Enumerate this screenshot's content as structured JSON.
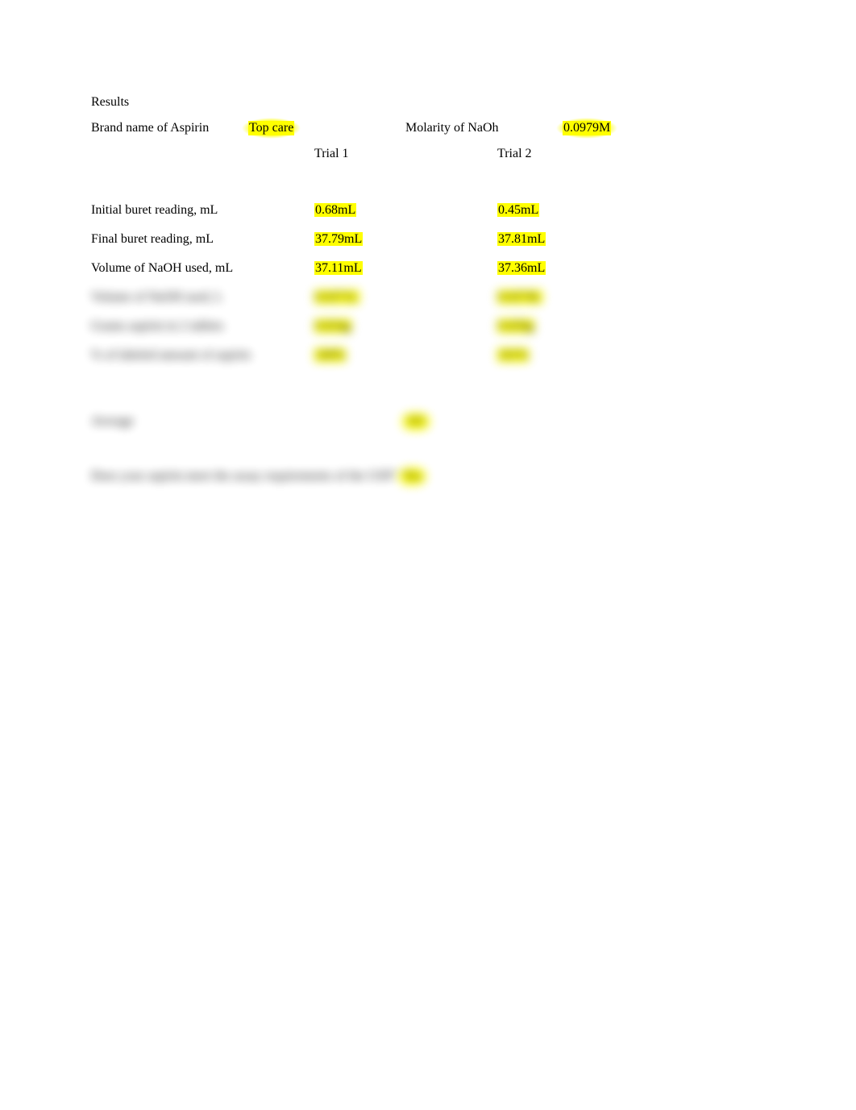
{
  "section_title": "Results",
  "header": {
    "brand_label": "Brand name of Aspirin",
    "brand_value": "Top care",
    "molarity_label": "Molarity of NaOh",
    "molarity_value": "0.0979M"
  },
  "trials": {
    "col1": "Trial 1",
    "col2": "Trial 2"
  },
  "rows": [
    {
      "label": "Initial buret reading, mL",
      "t1": "0.68mL",
      "t2": "0.45mL",
      "blurred": false
    },
    {
      "label": "Final buret reading, mL",
      "t1": "37.79mL",
      "t2": "37.81mL",
      "blurred": false
    },
    {
      "label": "Volume of NaOH used, mL",
      "t1": "37.11mL",
      "t2": "37.36mL",
      "blurred": false
    },
    {
      "label": "Volume of NaOH used, L",
      "t1": "0.0371L",
      "t2": "0.0374L",
      "blurred": true
    },
    {
      "label": "Grams aspirin in 2 tablets",
      "t1": "0.654g",
      "t2": "0.659g",
      "blurred": true
    },
    {
      "label": "% of labeled amount of aspirin",
      "t1": "100%",
      "t2": "101%",
      "blurred": true
    }
  ],
  "average": {
    "label": "Average",
    "value": "101"
  },
  "question": {
    "label": "Does your aspirin meet the assay requirements of the USP?",
    "value": "Yes"
  },
  "colors": {
    "highlight": "#ffff00",
    "text": "#000000",
    "background": "#ffffff"
  },
  "fonts": {
    "family": "Times New Roman",
    "size_pt": 12
  }
}
